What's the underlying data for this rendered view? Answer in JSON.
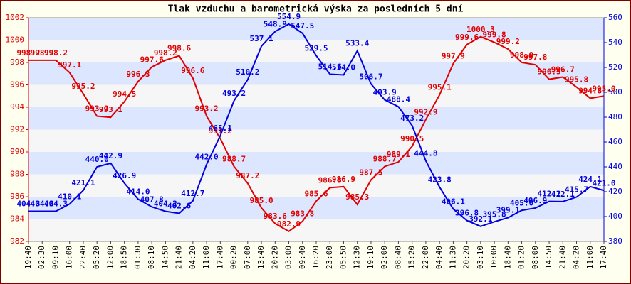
{
  "chart_data": {
    "type": "line",
    "title": "Tlak vzduchu a barometrická výska za posledních 5 dní",
    "categories": [
      "19:40",
      "02:30",
      "09:10",
      "16:00",
      "22:40",
      "05:20",
      "12:00",
      "18:50",
      "01:30",
      "08:10",
      "14:50",
      "21:40",
      "04:20",
      "11:00",
      "17:40",
      "00:20",
      "07:00",
      "13:40",
      "20:20",
      "03:00",
      "09:40",
      "16:20",
      "23:00",
      "05:50",
      "12:30",
      "19:10",
      "02:00",
      "08:40",
      "15:20",
      "22:00",
      "04:40",
      "11:30",
      "20:20",
      "03:10",
      "10:00",
      "18:40",
      "01:20",
      "08:00",
      "14:50",
      "21:40",
      "04:20",
      "11:00",
      "17:40"
    ],
    "series": [
      {
        "color": "#e00000",
        "axis": "y",
        "values": [
          998.2,
          998.2,
          998.2,
          997.1,
          995.2,
          993.2,
          993.1,
          994.5,
          996.3,
          997.6,
          998.2,
          998.6,
          996.6,
          993.2,
          991.2,
          988.7,
          987.2,
          985.0,
          983.6,
          982.9,
          983.8,
          985.6,
          986.8,
          986.9,
          985.3,
          987.5,
          988.7,
          989.1,
          990.5,
          992.9,
          995.1,
          997.9,
          999.6,
          1000.3,
          999.8,
          999.2,
          998.0,
          997.8,
          996.5,
          996.7,
          995.8,
          994.8,
          995.0
        ],
        "value_labels": [
          "998.2",
          "998.2",
          "998.2",
          "997.1",
          "995.2",
          "993.2",
          "993.1",
          "994.5",
          "996.3",
          "997.6",
          "998.2",
          "998.6",
          "996.6",
          "993.2",
          "991.2",
          "988.7",
          "987.2",
          "985.0",
          "983.6",
          "982.9",
          "983.8",
          "985.6",
          "986.8",
          "986.9",
          "985.3",
          "987.5",
          "988.7",
          "989.1",
          "990.5",
          "992.9",
          "995.1",
          "997.9",
          "999.6",
          "1000.3",
          "999.8",
          "999.2",
          "998.0",
          "997.8",
          "996.5",
          "996.7",
          "995.8",
          "994.8",
          "995.0"
        ]
      },
      {
        "color": "#0000e0",
        "axis": "y2",
        "values": [
          404.3,
          404.3,
          404.3,
          410.1,
          421.1,
          440.0,
          442.9,
          426.9,
          414.0,
          407.8,
          404.2,
          402.6,
          412.7,
          442.0,
          465.1,
          493.2,
          510.2,
          537.1,
          548.9,
          554.9,
          547.5,
          529.5,
          514.6,
          514.0,
          533.4,
          506.7,
          493.9,
          488.4,
          473.2,
          444.8,
          423.8,
          406.1,
          396.8,
          392.1,
          395.8,
          399.1,
          405.0,
          406.9,
          412.2,
          412.1,
          415.7,
          424.1,
          421.0
        ],
        "value_labels": [
          "404.3",
          "404.3",
          "404.3",
          "410.1",
          "421.1",
          "440.0",
          "442.9",
          "426.9",
          "414.0",
          "407.8",
          "404.2",
          "402.6",
          "412.7",
          "442.0",
          "465.1",
          "493.2",
          "510.2",
          "537.1",
          "548.9",
          "554.9",
          "547.5",
          "529.5",
          "514.6",
          "514.0",
          "533.4",
          "506.7",
          "493.9",
          "488.4",
          "473.2",
          "444.8",
          "423.8",
          "406.1",
          "396.8",
          "392.1",
          "395.8",
          "399.1",
          "405.0",
          "406.9",
          "412.2",
          "412.1",
          "415.7",
          "424.1",
          "421.0"
        ]
      }
    ],
    "ylim": [
      982,
      1002
    ],
    "yticks": [
      982,
      984,
      986,
      988,
      990,
      992,
      994,
      996,
      998,
      1000,
      1002
    ],
    "y2lim": [
      380,
      560
    ],
    "y2ticks": [
      380,
      400,
      420,
      440,
      460,
      480,
      500,
      520,
      540,
      560
    ],
    "ycolor": "#e00000",
    "y2color": "#0000e0",
    "grid": true
  }
}
